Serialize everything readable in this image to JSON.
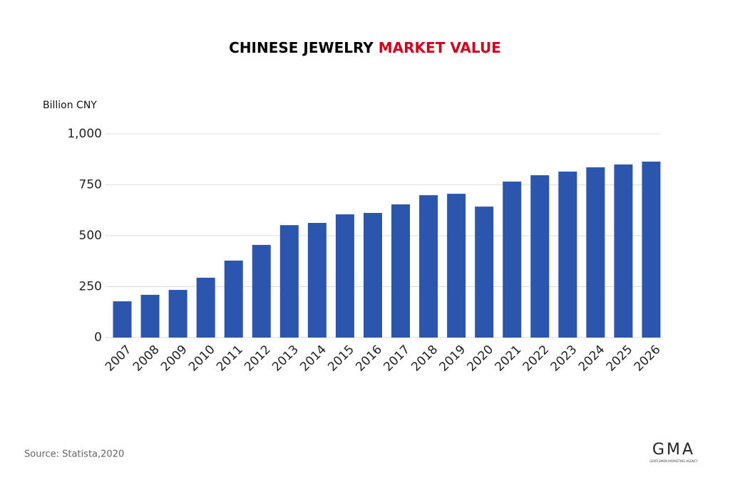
{
  "chart_data": {
    "type": "bar",
    "title_parts": [
      {
        "text": "CHINESE JEWELRY",
        "color": "#000000"
      },
      {
        "text": "MARKET VALUE",
        "color": "#d0021b"
      }
    ],
    "y_axis_label": "Billion CNY",
    "categories": [
      "2007",
      "2008",
      "2009",
      "2010",
      "2011",
      "2012",
      "2013",
      "2014",
      "2015",
      "2016",
      "2017",
      "2018",
      "2019",
      "2020",
      "2021",
      "2022",
      "2023",
      "2024",
      "2025",
      "2026"
    ],
    "values": [
      178,
      210,
      234,
      294,
      378,
      455,
      552,
      563,
      605,
      612,
      654,
      699,
      706,
      643,
      766,
      797,
      815,
      836,
      850,
      864
    ],
    "color": "#2c56ad",
    "ylim": [
      0,
      1000
    ],
    "yticks": [
      0,
      250,
      500,
      750,
      {
        "value": 1000,
        "label": "1,000"
      }
    ],
    "grid": true,
    "source": "Source: Statista,2020",
    "logo": "GMA",
    "logo_subtitle": "GENTLEMEN MARKETING AGENCY"
  }
}
